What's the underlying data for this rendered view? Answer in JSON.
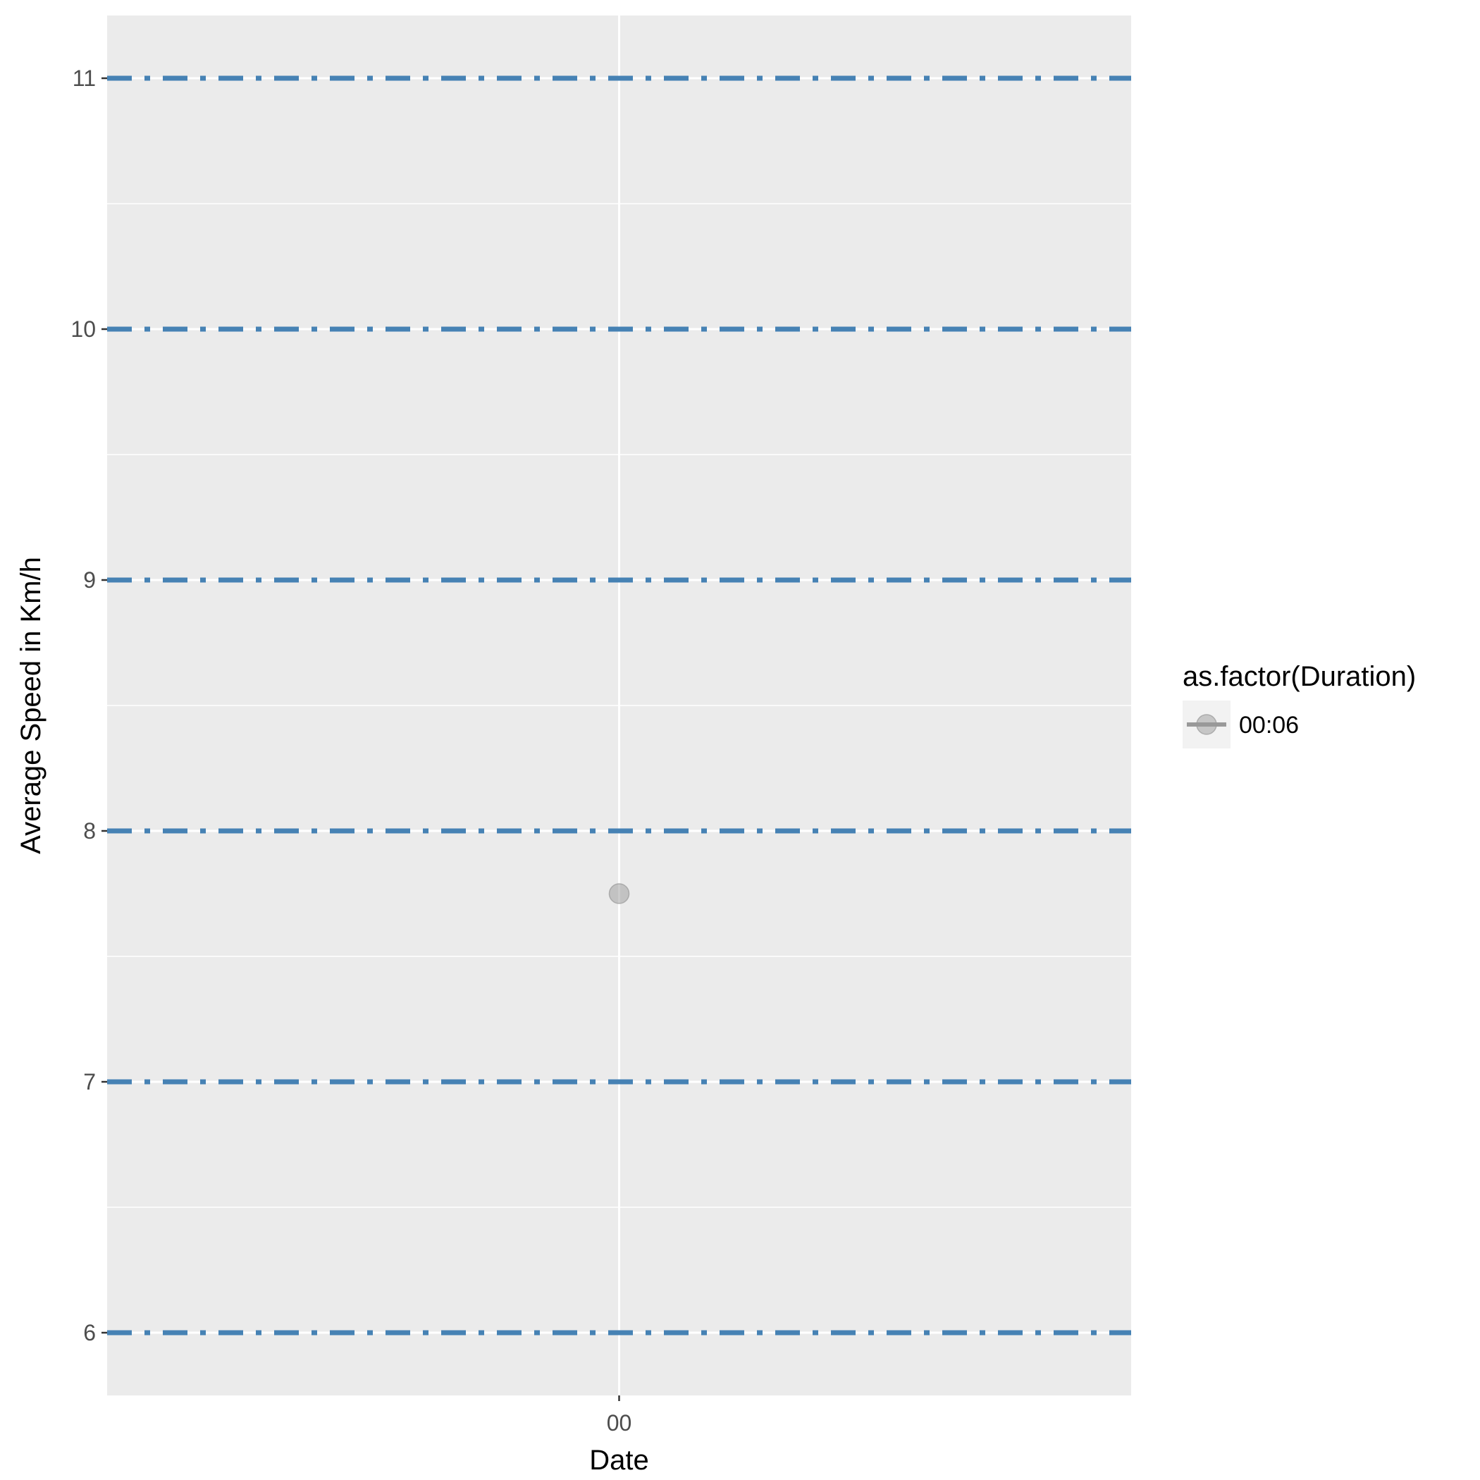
{
  "chart_data": {
    "type": "scatter",
    "title": "",
    "xlabel": "Date",
    "ylabel": "Average Speed in Km/h",
    "x_tick_labels": [
      "00"
    ],
    "y_ticks": [
      6,
      7,
      8,
      9,
      10,
      11
    ],
    "ylim": [
      5.75,
      11.25
    ],
    "grid": true,
    "points": [
      {
        "x": "00",
        "y": 7.75,
        "group": "00:06"
      }
    ],
    "reference_lines": {
      "orientation": "horizontal",
      "linetype": "dotdash",
      "color": "#4682b4",
      "values": [
        6,
        7,
        8,
        9,
        10,
        11
      ]
    },
    "legend": {
      "title": "as.factor(Duration)",
      "placement": "right",
      "entries": [
        {
          "label": "00:06",
          "color": "#999999"
        }
      ]
    }
  },
  "colors": {
    "panel_background": "#ebebeb",
    "grid_line": "#ffffff",
    "point": "#999999",
    "reference_line": "#4682b4"
  }
}
